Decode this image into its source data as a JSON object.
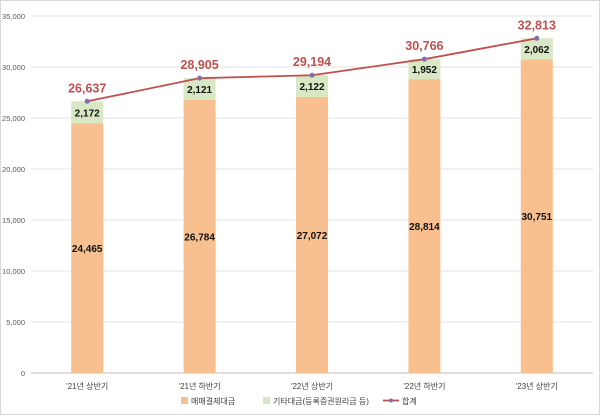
{
  "chart_data": {
    "type": "bar",
    "stacked": true,
    "categories": [
      "'21년 상반기",
      "'21년 하반기",
      "'22년 상반기",
      "'22년 하반기",
      "'23년 상반기"
    ],
    "series": [
      {
        "name": "매매결제대금",
        "type": "bar",
        "color": "#f9c08f",
        "values": [
          24465,
          26784,
          27072,
          28814,
          30751
        ],
        "labels": [
          "24,465",
          "26,784",
          "27,072",
          "28,814",
          "30,751"
        ]
      },
      {
        "name": "기타대금(등록증권원리금 등)",
        "type": "bar",
        "color": "#d9e8c4",
        "values": [
          2172,
          2121,
          2122,
          1952,
          2062
        ],
        "labels": [
          "2,172",
          "2,121",
          "2,122",
          "1,952",
          "2,062"
        ]
      },
      {
        "name": "합계",
        "type": "line",
        "color": "#c0504d",
        "values": [
          26637,
          28905,
          29194,
          30766,
          32813
        ],
        "labels": [
          "26,637",
          "28,905",
          "29,194",
          "30,766",
          "32,813"
        ]
      }
    ],
    "y_ticks": [
      "0",
      "5,000",
      "10,000",
      "15,000",
      "20,000",
      "25,000",
      "30,000",
      "35,000"
    ],
    "ylim": [
      0,
      35000
    ],
    "grid": true,
    "legend": "bottom"
  }
}
